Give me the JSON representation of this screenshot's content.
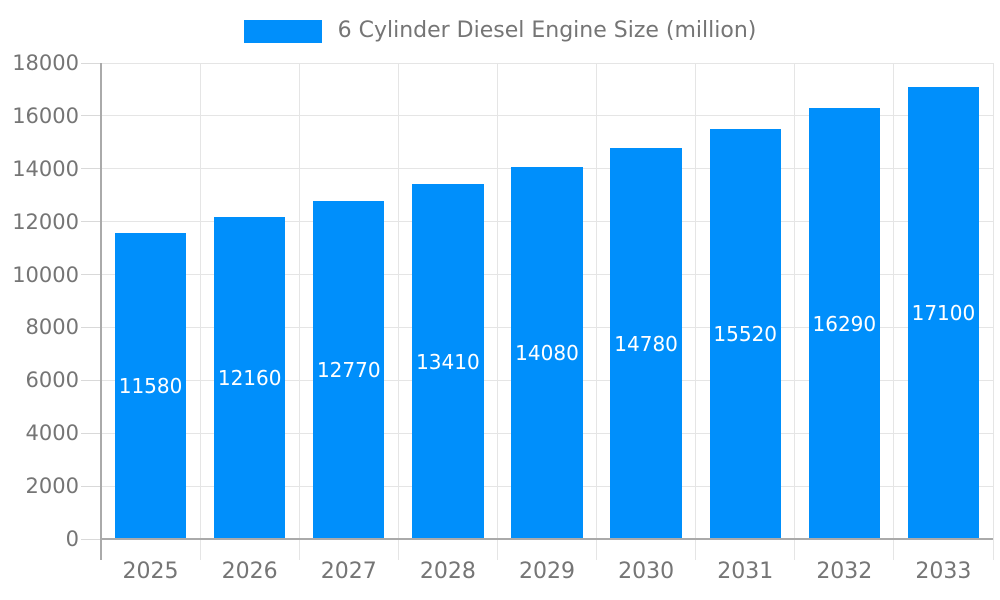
{
  "legend": {
    "label": "6 Cylinder Diesel Engine Size (million)"
  },
  "chart_data": {
    "type": "bar",
    "title": "6 Cylinder Diesel Engine Size (million)",
    "categories": [
      "2025",
      "2026",
      "2027",
      "2028",
      "2029",
      "2030",
      "2031",
      "2032",
      "2033"
    ],
    "series": [
      {
        "name": "6 Cylinder Diesel Engine Size (million)",
        "values": [
          11580,
          12160,
          12770,
          13410,
          14080,
          14780,
          15520,
          16290,
          17100
        ]
      }
    ],
    "values": [
      11580,
      12160,
      12770,
      13410,
      14080,
      14780,
      15520,
      16290,
      17100
    ],
    "xlabel": "",
    "ylabel": "",
    "ylim": [
      0,
      18000
    ],
    "ytick_step": 2000,
    "ytick_labels": [
      "0",
      "2000",
      "4000",
      "6000",
      "8000",
      "10000",
      "12000",
      "14000",
      "16000",
      "18000"
    ],
    "grid": true,
    "legend_position": "top-center",
    "data_labels_position": "inside-center",
    "colors": {
      "bar": "#008FFB",
      "value_label": "#FFFFFF",
      "axis_text": "#757575",
      "gridline": "#E5E5E5",
      "tick": "#D9D9D9",
      "axis_line": "#AAAAAA",
      "background": "#FFFFFF"
    }
  }
}
